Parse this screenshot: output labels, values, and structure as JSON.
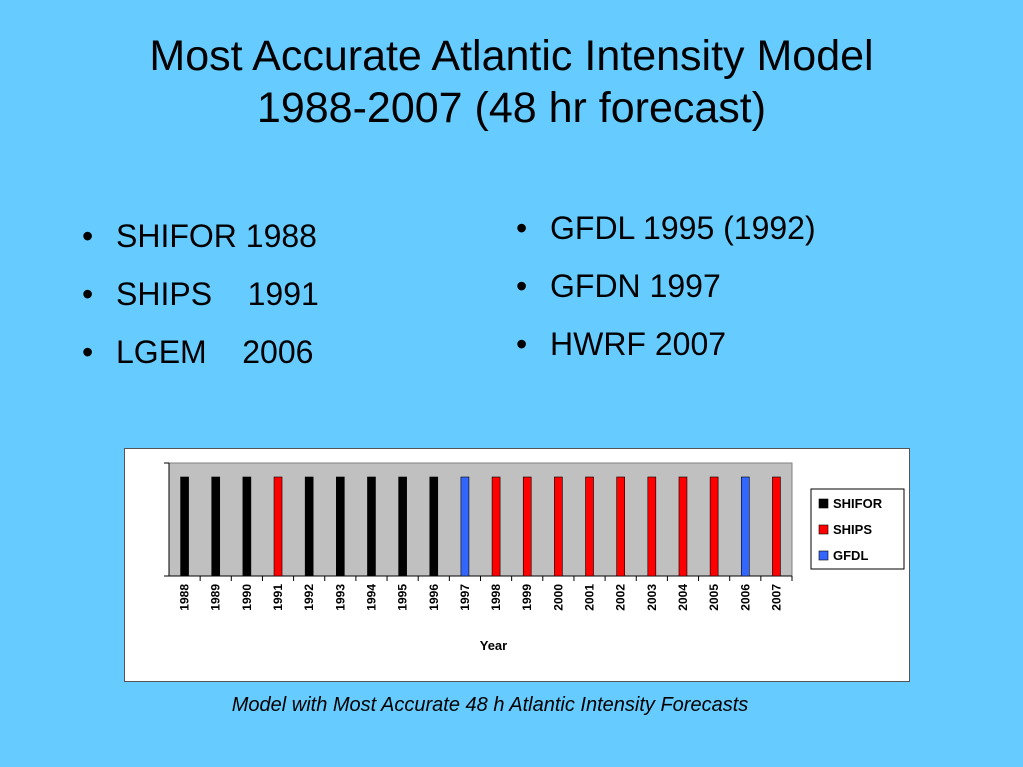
{
  "slide": {
    "title_line1": "Most Accurate Atlantic Intensity Model",
    "title_line2": "1988-2007  (48 hr forecast)",
    "left_bullets": [
      "SHIFOR 1988",
      "SHIPS    1991",
      "LGEM    2006"
    ],
    "right_bullets": [
      "GFDL 1995 (1992)",
      "GFDN 1997",
      "HWRF 2007"
    ],
    "caption": "Model with Most Accurate 48 h Atlantic Intensity Forecasts"
  },
  "colors": {
    "background": "#66ccff",
    "plot_area": "#c0c0c0",
    "SHIFOR": "#000000",
    "SHIPS": "#ff0000",
    "GFDL": "#3366ff"
  },
  "chart_data": {
    "type": "bar",
    "title": "",
    "xlabel": "Year",
    "ylabel": "",
    "categories": [
      "1988",
      "1989",
      "1990",
      "1991",
      "1992",
      "1993",
      "1994",
      "1995",
      "1996",
      "1997",
      "1998",
      "1999",
      "2000",
      "2001",
      "2002",
      "2003",
      "2004",
      "2005",
      "2006",
      "2007"
    ],
    "winner": [
      "SHIFOR",
      "SHIFOR",
      "SHIFOR",
      "SHIPS",
      "SHIFOR",
      "SHIFOR",
      "SHIFOR",
      "SHIFOR",
      "SHIFOR",
      "GFDL",
      "SHIPS",
      "SHIPS",
      "SHIPS",
      "SHIPS",
      "SHIPS",
      "SHIPS",
      "SHIPS",
      "SHIPS",
      "GFDL",
      "SHIPS"
    ],
    "series": [
      {
        "name": "SHIFOR",
        "values": [
          1,
          1,
          1,
          0,
          1,
          1,
          1,
          1,
          1,
          0,
          0,
          0,
          0,
          0,
          0,
          0,
          0,
          0,
          0,
          0
        ]
      },
      {
        "name": "SHIPS",
        "values": [
          0,
          0,
          0,
          1,
          0,
          0,
          0,
          0,
          0,
          0,
          1,
          1,
          1,
          1,
          1,
          1,
          1,
          1,
          0,
          1
        ]
      },
      {
        "name": "GFDL",
        "values": [
          0,
          0,
          0,
          0,
          0,
          0,
          0,
          0,
          0,
          1,
          0,
          0,
          0,
          0,
          0,
          0,
          0,
          0,
          1,
          0
        ]
      }
    ],
    "ylim": [
      0,
      1
    ],
    "legend": [
      "SHIFOR",
      "SHIPS",
      "GFDL"
    ],
    "legend_position": "right",
    "grid": false
  }
}
